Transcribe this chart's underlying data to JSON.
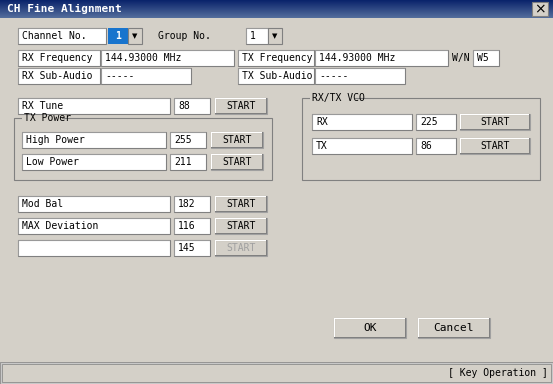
{
  "title": "CH Fine Alignment",
  "bg_color": "#d4d0c8",
  "white": "#ffffff",
  "text_color": "#000000",
  "disabled_text": "#a0a0a0",
  "button_bg": "#d4d0c8",
  "channel_no_label": "Channel No.",
  "channel_no_val": "1",
  "group_no_label": "Group No.",
  "group_no_val": "1",
  "rx_freq_label": "RX Frequency",
  "rx_freq_val": "144.93000 MHz",
  "tx_freq_label": "TX Frequency",
  "tx_freq_val": "144.93000 MHz",
  "wn_label": "W/N",
  "wn_val": "W5",
  "rx_subaudio_label": "RX Sub-Audio",
  "rx_subaudio_val": "-----",
  "tx_subaudio_label": "TX Sub-Audio",
  "tx_subaudio_val": "-----",
  "rx_tune_label": "RX Tune",
  "rx_tune_val": "88",
  "tx_power_group": "TX Power",
  "high_power_label": "High Power",
  "high_power_val": "255",
  "low_power_label": "Low Power",
  "low_power_val": "211",
  "mod_bal_label": "Mod Bal",
  "mod_bal_val": "182",
  "max_dev_label": "MAX Deviation",
  "max_dev_val": "116",
  "last_val": "145",
  "rxtx_vco_group": "RX/TX VCO",
  "vco_rx_label": "RX",
  "vco_rx_val": "225",
  "vco_tx_label": "TX",
  "vco_tx_val": "86",
  "ok_label": "OK",
  "cancel_label": "Cancel",
  "key_op_label": "[ Key Operation ]",
  "start_label": "START"
}
